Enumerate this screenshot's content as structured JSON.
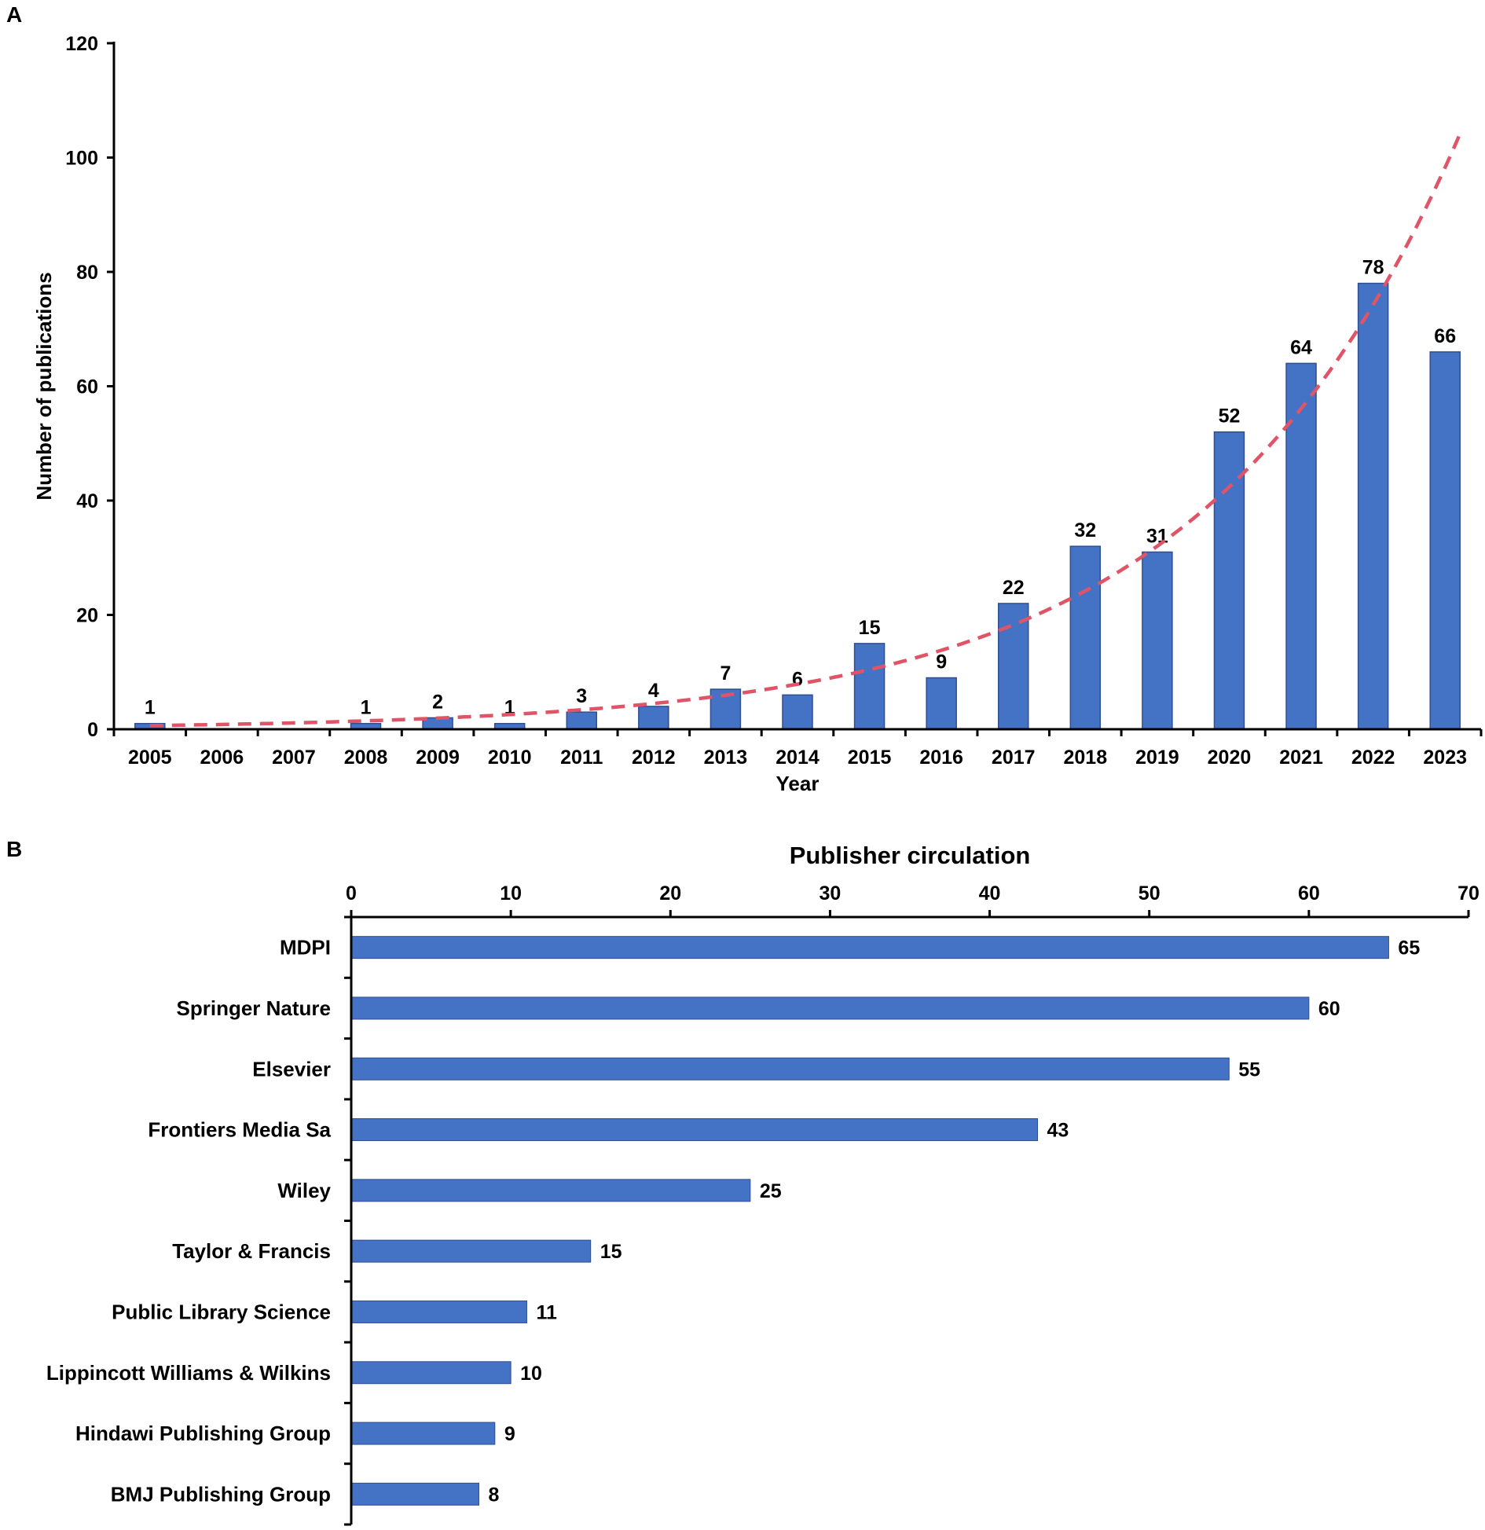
{
  "panels": {
    "a": "A",
    "b": "B"
  },
  "colors": {
    "bar": "#4472C4",
    "bar_edge": "#2F4F8F",
    "trend": "#E05468",
    "axis": "#000000"
  },
  "chart_data": [
    {
      "type": "bar",
      "title": "",
      "xlabel": "Year",
      "ylabel": "Number of publications",
      "ylim": [
        0,
        120
      ],
      "yticks": [
        0,
        20,
        40,
        60,
        80,
        100,
        120
      ],
      "categories": [
        "2005",
        "2006",
        "2007",
        "2008",
        "2009",
        "2010",
        "2011",
        "2012",
        "2013",
        "2014",
        "2015",
        "2016",
        "2017",
        "2018",
        "2019",
        "2020",
        "2021",
        "2022",
        "2023"
      ],
      "values": [
        1,
        0,
        0,
        1,
        2,
        1,
        3,
        4,
        7,
        6,
        15,
        9,
        22,
        32,
        31,
        52,
        64,
        78,
        66
      ],
      "data_labels": [
        "1",
        "",
        "",
        "1",
        "2",
        "1",
        "3",
        "4",
        "7",
        "6",
        "15",
        "9",
        "22",
        "32",
        "31",
        "52",
        "64",
        "78",
        "66"
      ],
      "trendline": {
        "type": "exponential",
        "style": "dashed",
        "a": 0.6328,
        "b": 0.2803,
        "x_end": 18.2
      }
    },
    {
      "type": "bar",
      "orientation": "horizontal",
      "title": "Publisher circulation",
      "xlabel": "Publisher circulation",
      "xaxis_position": "top",
      "xlim": [
        0,
        70
      ],
      "xticks": [
        0,
        10,
        20,
        30,
        40,
        50,
        60,
        70
      ],
      "categories": [
        "MDPI",
        "Springer Nature",
        "Elsevier",
        "Frontiers Media Sa",
        "Wiley",
        "Taylor & Francis",
        "Public Library Science",
        "Lippincott Williams & Wilkins",
        "Hindawi Publishing Group",
        "BMJ Publishing Group"
      ],
      "values": [
        65,
        60,
        55,
        43,
        25,
        15,
        11,
        10,
        9,
        8
      ],
      "data_labels": [
        "65",
        "60",
        "55",
        "43",
        "25",
        "15",
        "11",
        "10",
        "9",
        "8"
      ]
    }
  ]
}
